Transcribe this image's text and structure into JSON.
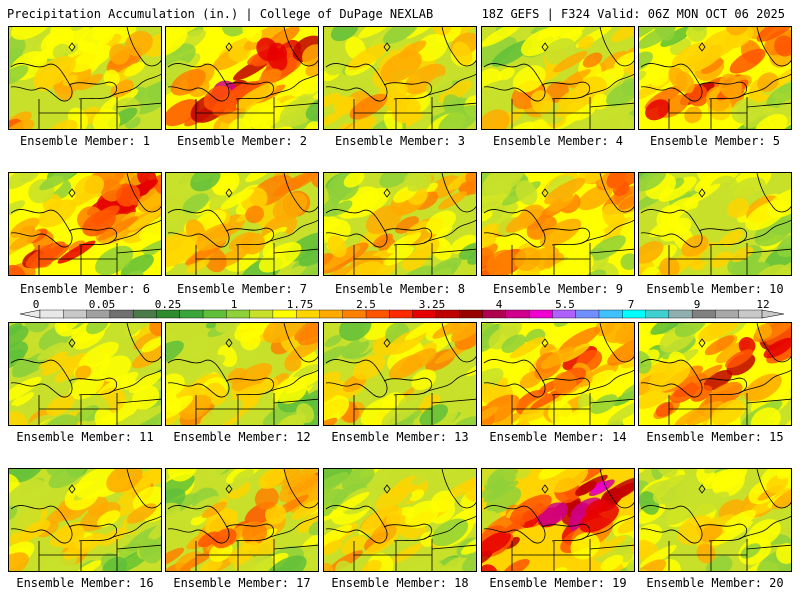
{
  "header": {
    "title": "Precipitation Accumulation (in.) | College of DuPage NEXLAB",
    "run_info": "18Z GEFS | F324 Valid: 06Z MON OCT 06 2025"
  },
  "panel_caption_prefix": "Ensemble Member:",
  "members": [
    {
      "number": "1",
      "intensity": 1.2
    },
    {
      "number": "2",
      "intensity": 2.2
    },
    {
      "number": "3",
      "intensity": 1.1
    },
    {
      "number": "4",
      "intensity": 1.0
    },
    {
      "number": "5",
      "intensity": 2.0
    },
    {
      "number": "6",
      "intensity": 2.1
    },
    {
      "number": "7",
      "intensity": 1.3
    },
    {
      "number": "8",
      "intensity": 1.2
    },
    {
      "number": "9",
      "intensity": 1.6
    },
    {
      "number": "10",
      "intensity": 0.9
    },
    {
      "number": "11",
      "intensity": 0.9
    },
    {
      "number": "12",
      "intensity": 1.1
    },
    {
      "number": "13",
      "intensity": 1.2
    },
    {
      "number": "14",
      "intensity": 1.6
    },
    {
      "number": "15",
      "intensity": 2.0
    },
    {
      "number": "16",
      "intensity": 1.1
    },
    {
      "number": "17",
      "intensity": 1.4
    },
    {
      "number": "18",
      "intensity": 0.9
    },
    {
      "number": "19",
      "intensity": 2.8
    },
    {
      "number": "20",
      "intensity": 1.0
    }
  ],
  "colorbar": {
    "labels": [
      "0",
      "0.05",
      "0.25",
      "1",
      "1.75",
      "2.5",
      "3.25",
      "4",
      "5.5",
      "7",
      "9",
      "12"
    ],
    "colors": [
      "#e8e8e8",
      "#c8c8c8",
      "#a0a0a0",
      "#707070",
      "#4a7a4a",
      "#2e8b2e",
      "#3aa53a",
      "#5fbf3a",
      "#8fd13a",
      "#c8e02a",
      "#ffff00",
      "#ffd400",
      "#ffaa00",
      "#ff8000",
      "#ff5500",
      "#ff2a00",
      "#e60000",
      "#c00000",
      "#990000",
      "#b00050",
      "#d0008c",
      "#f000d0",
      "#b060ff",
      "#7090ff",
      "#40c0ff",
      "#00ffff",
      "#40d0d0",
      "#90b0b0",
      "#808080",
      "#a8a8a8",
      "#c8c8c8"
    ]
  }
}
